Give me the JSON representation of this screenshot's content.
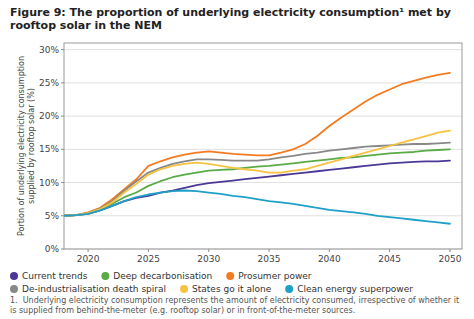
{
  "chart_data": {
    "type": "line",
    "title": "Figure 9: The proportion of underlying electricity consumption¹ met by rooftop solar in the NEM",
    "y_label": "Portion of underlying electricity consumption\nsupplied by rooftop solar (%)",
    "annotations": [
      "1.  Underlying electricity consumption represents the amount of electricity consumed, irrespective of whether it is supplied from behind-the-meter (e.g. rooftop solar) or in front-of-the-meter sources."
    ],
    "x": [
      2018,
      2019,
      2020,
      2021,
      2022,
      2023,
      2024,
      2025,
      2026,
      2027,
      2028,
      2029,
      2030,
      2031,
      2032,
      2033,
      2034,
      2035,
      2036,
      2037,
      2038,
      2039,
      2040,
      2041,
      2042,
      2043,
      2044,
      2045,
      2046,
      2047,
      2048,
      2049,
      2050
    ],
    "series": [
      {
        "name": "Current trends",
        "color": "#4b3896",
        "values": [
          5.0,
          5.1,
          5.3,
          5.8,
          6.5,
          7.2,
          7.7,
          8.0,
          8.5,
          8.8,
          9.2,
          9.6,
          9.9,
          10.1,
          10.3,
          10.5,
          10.7,
          10.9,
          11.1,
          11.3,
          11.5,
          11.7,
          11.9,
          12.1,
          12.3,
          12.5,
          12.7,
          12.9,
          13.0,
          13.1,
          13.2,
          13.2,
          13.3
        ]
      },
      {
        "name": "Deep decarbonisation",
        "color": "#5aaa46",
        "values": [
          5.0,
          5.1,
          5.4,
          6.0,
          6.8,
          7.8,
          8.5,
          9.5,
          10.2,
          10.8,
          11.2,
          11.5,
          11.8,
          11.9,
          12.0,
          12.2,
          12.4,
          12.5,
          12.7,
          12.9,
          13.1,
          13.3,
          13.5,
          13.7,
          13.8,
          14.0,
          14.2,
          14.4,
          14.5,
          14.6,
          14.8,
          14.9,
          15.0
        ]
      },
      {
        "name": "Prosumer power",
        "color": "#f47b20",
        "values": [
          5.0,
          5.1,
          5.5,
          6.2,
          7.5,
          9.0,
          10.5,
          12.5,
          13.2,
          13.8,
          14.2,
          14.5,
          14.7,
          14.5,
          14.3,
          14.2,
          14.1,
          14.1,
          14.5,
          15.0,
          15.8,
          17.0,
          18.5,
          19.8,
          21.0,
          22.2,
          23.2,
          24.0,
          24.8,
          25.3,
          25.8,
          26.2,
          26.5
        ]
      },
      {
        "name": "De-industrialisation death spiral",
        "color": "#888888",
        "values": [
          5.0,
          5.1,
          5.4,
          6.1,
          7.2,
          8.8,
          10.2,
          11.5,
          12.2,
          12.8,
          13.2,
          13.5,
          13.5,
          13.4,
          13.3,
          13.3,
          13.3,
          13.5,
          13.8,
          14.0,
          14.3,
          14.5,
          14.8,
          15.0,
          15.2,
          15.4,
          15.5,
          15.6,
          15.7,
          15.8,
          15.8,
          15.9,
          16.0
        ]
      },
      {
        "name": "States go it alone",
        "color": "#f5c242",
        "values": [
          5.0,
          5.1,
          5.4,
          6.0,
          7.0,
          8.5,
          9.8,
          11.2,
          12.0,
          12.5,
          12.8,
          13.0,
          12.8,
          12.5,
          12.2,
          12.0,
          11.8,
          11.5,
          11.5,
          11.8,
          12.0,
          12.5,
          13.0,
          13.5,
          14.0,
          14.5,
          15.0,
          15.5,
          16.0,
          16.5,
          17.0,
          17.5,
          17.8
        ]
      },
      {
        "name": "Clean energy superpower",
        "color": "#1fa0c8",
        "values": [
          5.0,
          5.1,
          5.3,
          5.8,
          6.5,
          7.2,
          7.8,
          8.2,
          8.5,
          8.7,
          8.8,
          8.7,
          8.5,
          8.3,
          8.0,
          7.8,
          7.5,
          7.2,
          7.0,
          6.8,
          6.5,
          6.2,
          5.9,
          5.7,
          5.5,
          5.3,
          5.0,
          4.8,
          4.6,
          4.4,
          4.2,
          4.0,
          3.8
        ]
      }
    ],
    "xlim": [
      2018,
      2051
    ],
    "xticks": [
      2020,
      2025,
      2030,
      2035,
      2040,
      2045,
      2050
    ],
    "ylim": [
      0,
      31
    ],
    "yticks": [
      {
        "value": 0,
        "label": "0%"
      },
      {
        "value": 5,
        "label": "5%"
      },
      {
        "value": 10,
        "label": "10%"
      },
      {
        "value": 15,
        "label": "15%"
      },
      {
        "value": 20,
        "label": "20%"
      },
      {
        "value": 25,
        "label": "25%"
      },
      {
        "value": 30,
        "label": "30%"
      }
    ],
    "grid": true,
    "legend": "bottom"
  }
}
